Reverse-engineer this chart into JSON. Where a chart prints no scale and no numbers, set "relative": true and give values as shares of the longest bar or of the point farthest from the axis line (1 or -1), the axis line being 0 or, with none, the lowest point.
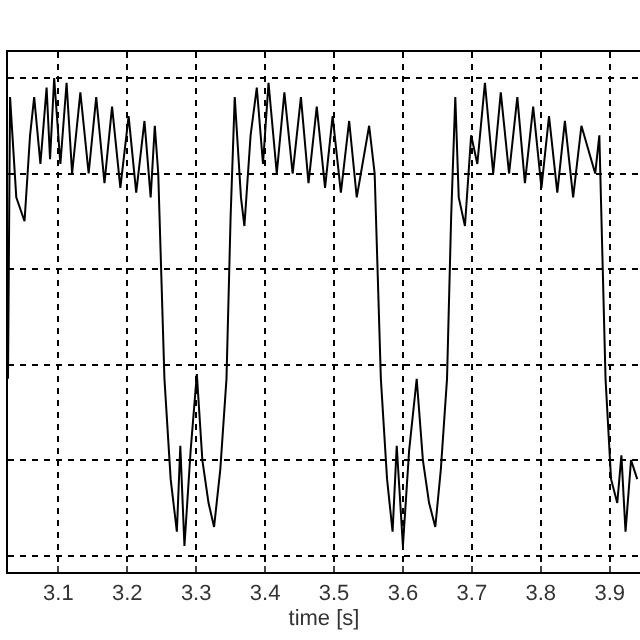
{
  "chart_data": {
    "type": "line",
    "xlabel": "time [s]",
    "relative": true,
    "grid": true,
    "marker": "none",
    "line_style": "solid",
    "xlim": [
      3.027,
      3.944
    ],
    "xticks": [
      3.1,
      3.2,
      3.3,
      3.4,
      3.5,
      3.6,
      3.7,
      3.8,
      3.9
    ],
    "series": [
      {
        "color": "#000000",
        "x": [
          3.027,
          3.03,
          3.039,
          3.051,
          3.059,
          3.065,
          3.074,
          3.083,
          3.088,
          3.094,
          3.103,
          3.112,
          3.12,
          3.132,
          3.144,
          3.155,
          3.167,
          3.178,
          3.19,
          3.202,
          3.213,
          3.225,
          3.234,
          3.24,
          3.245,
          3.254,
          3.263,
          3.272,
          3.277,
          3.283,
          3.292,
          3.301,
          3.309,
          3.318,
          3.326,
          3.335,
          3.344,
          3.35,
          3.356,
          3.365,
          3.37,
          3.379,
          3.388,
          3.397,
          3.405,
          3.417,
          3.428,
          3.44,
          3.452,
          3.463,
          3.475,
          3.487,
          3.498,
          3.51,
          3.522,
          3.533,
          3.551,
          3.559,
          3.568,
          3.577,
          3.585,
          3.591,
          3.6,
          3.609,
          3.62,
          3.629,
          3.638,
          3.647,
          3.655,
          3.664,
          3.67,
          3.676,
          3.681,
          3.69,
          3.699,
          3.708,
          3.719,
          3.731,
          3.742,
          3.754,
          3.766,
          3.777,
          3.789,
          3.801,
          3.812,
          3.824,
          3.835,
          3.847,
          3.859,
          3.879,
          3.885,
          3.894,
          3.902,
          3.911,
          3.917,
          3.923,
          3.931,
          3.94
        ],
        "values": [
          0.37,
          0.96,
          0.75,
          0.7,
          0.88,
          0.96,
          0.82,
          0.98,
          0.83,
          1.0,
          0.82,
          0.99,
          0.8,
          0.97,
          0.8,
          0.96,
          0.78,
          0.94,
          0.77,
          0.92,
          0.76,
          0.91,
          0.75,
          0.9,
          0.8,
          0.37,
          0.16,
          0.05,
          0.23,
          0.02,
          0.22,
          0.38,
          0.2,
          0.11,
          0.06,
          0.18,
          0.37,
          0.71,
          0.96,
          0.75,
          0.69,
          0.88,
          0.98,
          0.82,
          0.99,
          0.8,
          0.97,
          0.8,
          0.96,
          0.78,
          0.94,
          0.77,
          0.92,
          0.76,
          0.91,
          0.75,
          0.9,
          0.8,
          0.37,
          0.16,
          0.05,
          0.23,
          0.02,
          0.22,
          0.37,
          0.2,
          0.11,
          0.06,
          0.18,
          0.37,
          0.71,
          0.96,
          0.75,
          0.69,
          0.88,
          0.82,
          0.99,
          0.8,
          0.97,
          0.8,
          0.96,
          0.78,
          0.94,
          0.77,
          0.92,
          0.76,
          0.91,
          0.75,
          0.9,
          0.8,
          0.88,
          0.37,
          0.16,
          0.11,
          0.21,
          0.05,
          0.2,
          0.16
        ]
      }
    ]
  }
}
